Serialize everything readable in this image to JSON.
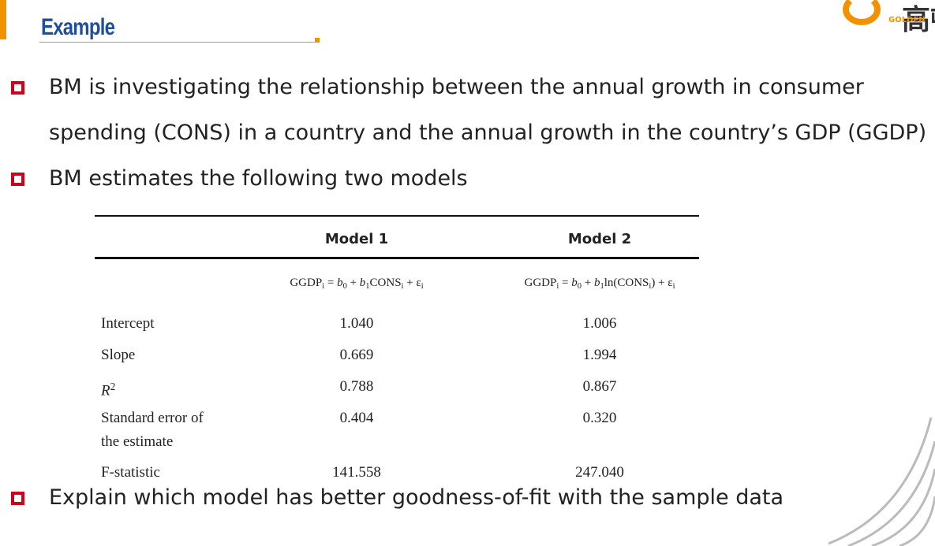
{
  "header": {
    "title": "Example",
    "logo": {
      "mark": "高顿",
      "brand": "GOLDEN"
    }
  },
  "bullets": [
    [
      "BM is investigating the relationship between the annual growth in consumer",
      "spending (CONS) in a country and the annual growth in the country’s GDP (GGDP)"
    ],
    [
      "BM estimates the following two models"
    ]
  ],
  "table": {
    "columns": [
      "Model 1",
      "Model 2"
    ],
    "formulas": [
      [
        {
          "text": "GGDP"
        },
        {
          "text": "i",
          "style": "sub"
        },
        {
          "text": " = "
        },
        {
          "text": "b",
          "style": "italic"
        },
        {
          "text": "0",
          "style": "sub"
        },
        {
          "text": " + "
        },
        {
          "text": "b",
          "style": "italic"
        },
        {
          "text": "1",
          "style": "sub"
        },
        {
          "text": "CONS"
        },
        {
          "text": "i",
          "style": "sub"
        },
        {
          "text": " + ε"
        },
        {
          "text": "i",
          "style": "sub"
        }
      ],
      [
        {
          "text": "GGDP"
        },
        {
          "text": "i",
          "style": "sub"
        },
        {
          "text": " = "
        },
        {
          "text": "b",
          "style": "italic"
        },
        {
          "text": "0",
          "style": "sub"
        },
        {
          "text": " + "
        },
        {
          "text": "b",
          "style": "italic"
        },
        {
          "text": "1",
          "style": "sub"
        },
        {
          "text": "ln(CONS"
        },
        {
          "text": "i",
          "style": "sub"
        },
        {
          "text": ") + ε"
        },
        {
          "text": "i",
          "style": "sub"
        }
      ]
    ],
    "rows": [
      {
        "label": [
          {
            "text": "Intercept"
          }
        ],
        "cells": [
          "1.040",
          "1.006"
        ]
      },
      {
        "label": [
          {
            "text": "Slope"
          }
        ],
        "cells": [
          "0.669",
          "1.994"
        ]
      },
      {
        "label": [
          {
            "text": "R",
            "style": "italic"
          },
          {
            "text": "2",
            "style": "sup"
          }
        ],
        "cells": [
          "0.788",
          "0.867"
        ]
      },
      {
        "label": [
          {
            "text": "Standard error of"
          },
          {
            "text": "the estimate",
            "style": "line"
          }
        ],
        "cells": [
          "0.404",
          "0.320"
        ]
      },
      {
        "label": [
          {
            "text": "F-statistic"
          }
        ],
        "cells": [
          "141.558",
          "247.040"
        ]
      }
    ]
  },
  "question": "Explain which model has better goodness-of-fit with the sample data"
}
